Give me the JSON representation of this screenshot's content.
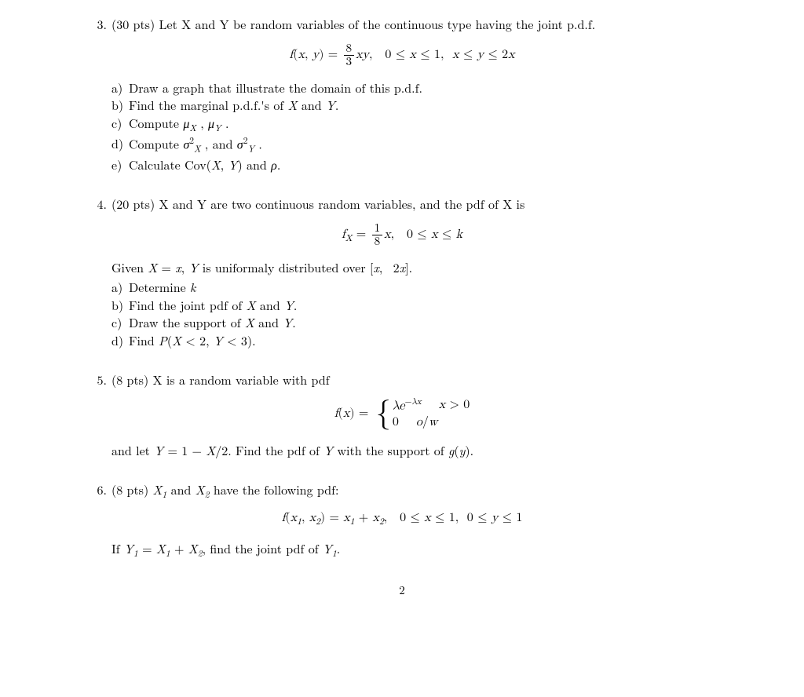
{
  "page_number": "2",
  "problems": [
    {
      "number": "3.",
      "points": "(30 pts)",
      "intro": "Let X and Y be random variables of the continuous type having the joint p.d.f.",
      "equation_html": "<span class='ital'>f</span>(<span class='ital'>x</span>, <span class='ital'>y</span>) = <span class='frac'><span class='num'>8</span><span class='den'>3</span></span><span class='ital'>x</span><span class='ital'>y</span>,&nbsp;&nbsp;&nbsp;0 ≤ <span class='ital'>x</span> ≤ 1,&nbsp;&nbsp;<span class='ital'>x</span> ≤ <span class='ital'>y</span> ≤ 2<span class='ital'>x</span>",
      "parts": [
        {
          "label": "a)",
          "text_html": "Draw a graph that illustrate the domain of this p.d.f."
        },
        {
          "label": "b)",
          "text_html": "Find the marginal p.d.f.'s of <span class='ital'>X</span> and <span class='ital'>Y</span>."
        },
        {
          "label": "c)",
          "text_html": "Compute <span class='ital'>μ</span><span class='sub'>X</span> , <span class='ital'>μ</span><span class='sub'>Y</span> ."
        },
        {
          "label": "d)",
          "text_html": "Compute <span class='ital'>σ</span><span class='sup'>2</span><span class='sub'>X</span> , and <span class='ital'>σ</span><span class='sup'>2</span><span class='sub'>Y</span> ."
        },
        {
          "label": "e)",
          "text_html": "Calculate Cov(<span class='ital'>X</span>, <span class='ital'>Y</span>) and <span class='ital'>ρ</span>."
        }
      ]
    },
    {
      "number": "4.",
      "points": "(20 pts)",
      "intro": "X and Y are two continuous random variables, and the pdf of X is",
      "equation_html": "<span class='ital'>f</span><span class='sub'>X</span> = <span class='frac'><span class='num'>1</span><span class='den'>8</span></span><span class='ital'>x</span>,&nbsp;&nbsp;&nbsp;0 ≤ <span class='ital'>x</span> ≤ <span class='ital'>k</span>",
      "given_html": "Given <span class='ital'>X</span> = <span class='ital'>x</span>, <span class='ital'>Y</span> is uniformaly distributed over [<span class='ital'>x</span>,&nbsp; 2<span class='ital'>x</span>].",
      "parts": [
        {
          "label": "a)",
          "text_html": "Determine <span class='ital'>k</span>"
        },
        {
          "label": "b)",
          "text_html": "Find the joint pdf of <span class='ital'>X</span> and <span class='ital'>Y</span>."
        },
        {
          "label": "c)",
          "text_html": "Draw the support of <span class='ital'>X</span> and <span class='ital'>Y</span>."
        },
        {
          "label": "d)",
          "text_html": "Find <span class='ital'>P</span>(<span class='ital'>X</span> &lt; 2, <span class='ital'>Y</span> &lt; 3)."
        }
      ]
    },
    {
      "number": "5.",
      "points": "(8 pts)",
      "intro": "X is a random variable with pdf",
      "equation_html": "<span class='ital'>f</span>(<span class='ital'>x</span>) = <span class='brace'>{</span><span class='cases'><span class='row'><span><span class='ital'>λe</span><span class='sup'>−<span class='ital'>λx</span></span></span><span><span class='ital'>x</span> &gt; 0</span></span><span class='row'><span>0</span><span><span class='ital'>o</span>/<span class='ital'>w</span></span></span></span>",
      "trailing_html": "and let <span class='ital'>Y</span> = 1 − <span class='ital'>X</span>/2. Find the pdf of <span class='ital'>Y</span> with the support of <span class='ital'>g</span>(<span class='ital'>y</span>)."
    },
    {
      "number": "6.",
      "points": "(8 pts)",
      "intro_html": "<span class='ital'>X</span><span class='sub'>1</span> and <span class='ital'>X</span><span class='sub'>2</span> have the following pdf:",
      "equation_html": "<span class='ital'>f</span>(<span class='ital'>x</span><span class='sub'>1</span>, <span class='ital'>x</span><span class='sub'>2</span>) = <span class='ital'>x</span><span class='sub'>1</span> + <span class='ital'>x</span><span class='sub'>2</span>,&nbsp;&nbsp;&nbsp;0 ≤ <span class='ital'>x</span> ≤ 1,&nbsp;&nbsp;0 ≤ <span class='ital'>y</span> ≤ 1",
      "trailing_html": "If <span class='ital'>Y</span><span class='sub'>1</span> = <span class='ital'>X</span><span class='sub'>1</span> + <span class='ital'>X</span><span class='sub'>2</span>, find the joint pdf of <span class='ital'>Y</span><span class='sub'>1</span>."
    }
  ]
}
